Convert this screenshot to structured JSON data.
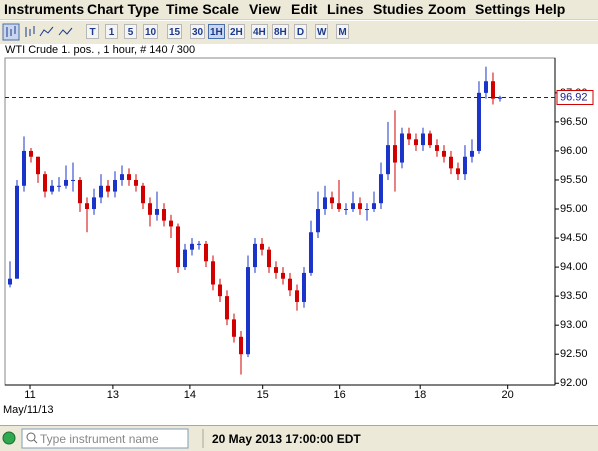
{
  "ui": {
    "menu": [
      "Instruments",
      "Chart Type",
      "Time Scale",
      "View",
      "Edit",
      "Lines",
      "Studies",
      "Zoom",
      "Settings",
      "Help"
    ],
    "timeframes": [
      "T",
      "1",
      "5",
      "10",
      "15",
      "30",
      "1H",
      "2H",
      "4H",
      "8H",
      "D",
      "W",
      "M"
    ],
    "date_label": "May/11/13",
    "search_placeholder": "Type instrument name",
    "status_time": "20 May 2013 17:00:00 EDT"
  },
  "chart_data": {
    "type": "candlestick",
    "title": "WTI Crude 1. pos. , 1 hour, # 140 / 300",
    "up_color": "#1a33c9",
    "down_color": "#d10000",
    "last_price": 96.92,
    "xlim": [
      -0.714,
      77.86
    ],
    "xticks": [
      {
        "value": 2.86,
        "label": "11"
      },
      {
        "value": 14.7,
        "label": "13"
      },
      {
        "value": 25.7,
        "label": "14"
      },
      {
        "value": 36.1,
        "label": "15"
      },
      {
        "value": 47.1,
        "label": "16"
      },
      {
        "value": 58.6,
        "label": "18"
      },
      {
        "value": 71.1,
        "label": "20"
      }
    ],
    "ylim": [
      91.97,
      97.6
    ],
    "yticks": [
      {
        "value": 92,
        "label": "92.00"
      },
      {
        "value": 92.5,
        "label": "92.50"
      },
      {
        "value": 93,
        "label": "93.00"
      },
      {
        "value": 93.5,
        "label": "93.50"
      },
      {
        "value": 94,
        "label": "94.00"
      },
      {
        "value": 94.5,
        "label": "94.50"
      },
      {
        "value": 95,
        "label": "95.00"
      },
      {
        "value": 95.5,
        "label": "95.50"
      },
      {
        "value": 96,
        "label": "96.00"
      },
      {
        "value": 96.5,
        "label": "96.50"
      },
      {
        "value": 97,
        "label": "97.00"
      }
    ],
    "candles": [
      [
        93.7,
        94.1,
        93.65,
        93.8
      ],
      [
        93.8,
        95.5,
        93.8,
        95.4
      ],
      [
        95.4,
        96.25,
        95.3,
        96.0
      ],
      [
        96.0,
        96.05,
        95.8,
        95.9
      ],
      [
        95.9,
        95.9,
        95.45,
        95.6
      ],
      [
        95.6,
        95.65,
        95.2,
        95.3
      ],
      [
        95.3,
        95.5,
        95.25,
        95.4
      ],
      [
        95.4,
        95.55,
        95.3,
        95.4
      ],
      [
        95.4,
        95.75,
        95.35,
        95.5
      ],
      [
        95.5,
        95.8,
        95.3,
        95.5
      ],
      [
        95.5,
        95.55,
        94.95,
        95.1
      ],
      [
        95.1,
        95.2,
        94.6,
        95.0
      ],
      [
        95.0,
        95.35,
        94.9,
        95.2
      ],
      [
        95.2,
        95.6,
        95.1,
        95.4
      ],
      [
        95.4,
        95.5,
        95.2,
        95.3
      ],
      [
        95.3,
        95.65,
        95.2,
        95.5
      ],
      [
        95.5,
        95.75,
        95.4,
        95.6
      ],
      [
        95.6,
        95.7,
        95.4,
        95.5
      ],
      [
        95.5,
        95.6,
        95.3,
        95.4
      ],
      [
        95.4,
        95.45,
        95.0,
        95.1
      ],
      [
        95.1,
        95.2,
        94.7,
        94.9
      ],
      [
        94.9,
        95.3,
        94.8,
        95.0
      ],
      [
        95.0,
        95.1,
        94.7,
        94.8
      ],
      [
        94.8,
        94.9,
        94.5,
        94.7
      ],
      [
        94.7,
        94.75,
        93.9,
        94.0
      ],
      [
        94.0,
        94.4,
        93.95,
        94.3
      ],
      [
        94.3,
        94.5,
        94.2,
        94.4
      ],
      [
        94.4,
        94.45,
        94.3,
        94.4
      ],
      [
        94.4,
        94.45,
        94.0,
        94.1
      ],
      [
        94.1,
        94.2,
        93.6,
        93.7
      ],
      [
        93.7,
        93.8,
        93.4,
        93.5
      ],
      [
        93.5,
        93.6,
        93.0,
        93.1
      ],
      [
        93.1,
        93.2,
        92.7,
        92.8
      ],
      [
        92.8,
        92.9,
        92.15,
        92.5
      ],
      [
        92.5,
        94.2,
        92.45,
        94.0
      ],
      [
        94.0,
        94.5,
        93.9,
        94.4
      ],
      [
        94.4,
        94.5,
        94.2,
        94.3
      ],
      [
        94.3,
        94.35,
        93.9,
        94.0
      ],
      [
        94.0,
        94.1,
        93.8,
        93.9
      ],
      [
        93.9,
        94.0,
        93.7,
        93.8
      ],
      [
        93.8,
        93.9,
        93.5,
        93.6
      ],
      [
        93.6,
        93.7,
        93.25,
        93.4
      ],
      [
        93.4,
        94.0,
        93.3,
        93.9
      ],
      [
        93.9,
        94.8,
        93.85,
        94.6
      ],
      [
        94.6,
        95.3,
        94.5,
        95.0
      ],
      [
        95.0,
        95.4,
        94.9,
        95.2
      ],
      [
        95.2,
        95.3,
        95.0,
        95.1
      ],
      [
        95.1,
        95.5,
        94.95,
        95.0
      ],
      [
        95.0,
        95.1,
        94.9,
        95.0
      ],
      [
        95.0,
        95.3,
        94.95,
        95.1
      ],
      [
        95.1,
        95.2,
        94.9,
        95.0
      ],
      [
        95.0,
        95.1,
        94.8,
        95.0
      ],
      [
        95.0,
        95.3,
        94.95,
        95.1
      ],
      [
        95.1,
        95.8,
        95.0,
        95.6
      ],
      [
        95.6,
        96.5,
        95.5,
        96.1
      ],
      [
        96.1,
        96.7,
        95.3,
        95.8
      ],
      [
        95.8,
        96.4,
        95.7,
        96.3
      ],
      [
        96.3,
        96.4,
        96.1,
        96.2
      ],
      [
        96.2,
        96.3,
        96.0,
        96.1
      ],
      [
        96.1,
        96.4,
        96.0,
        96.3
      ],
      [
        96.3,
        96.35,
        96.05,
        96.1
      ],
      [
        96.1,
        96.2,
        95.9,
        96.0
      ],
      [
        96.0,
        96.1,
        95.8,
        95.9
      ],
      [
        95.9,
        96.0,
        95.6,
        95.7
      ],
      [
        95.7,
        95.8,
        95.5,
        95.6
      ],
      [
        95.6,
        96.1,
        95.5,
        95.9
      ],
      [
        95.9,
        96.2,
        95.8,
        96.0
      ],
      [
        96.0,
        97.2,
        95.95,
        97.0
      ],
      [
        97.0,
        97.45,
        96.9,
        97.2
      ],
      [
        97.2,
        97.35,
        96.8,
        96.9
      ],
      [
        96.9,
        96.95,
        96.85,
        96.92
      ]
    ]
  }
}
